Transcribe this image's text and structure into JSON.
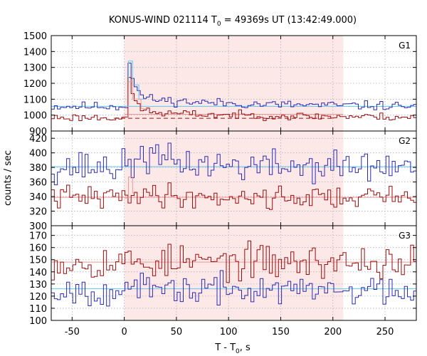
{
  "chart_data": {
    "type": "line",
    "title": "KONUS-WIND 021114 T",
    "title_sub": "0",
    "title_rest": " = 49369s UT (13:42:49.000)",
    "xlabel": "T - T",
    "xlabel_sub": "0",
    "xlabel_rest": ", s",
    "ylabel": "counts / sec",
    "xlim": [
      -70,
      280
    ],
    "xticks": [
      -50,
      0,
      50,
      100,
      150,
      200,
      250
    ],
    "xtick_labels": [
      "-50",
      "0",
      "50",
      "100",
      "150",
      "200",
      "250"
    ],
    "highlight": {
      "x0": 0,
      "x1": 210,
      "color": "#fde8e8"
    },
    "colors": {
      "blue": "#2b2bb0",
      "red": "#9b0d0d",
      "cyan": "#5bc8f0",
      "pink": "#e89a9a",
      "dash": "#9b0d0d"
    },
    "panels": [
      {
        "label": "G1",
        "ylim": [
          900,
          1500
        ],
        "yticks": [
          900,
          1000,
          1100,
          1200,
          1300,
          1400,
          1500
        ],
        "ytick_labels": [
          "900",
          "1000",
          "1100",
          "1200",
          "1300",
          "1400",
          "1500"
        ],
        "step": 2.944,
        "series": [
          {
            "name": "",
            "color": "blue",
            "background": 1055,
            "noise": 14,
            "seed": 11,
            "pulse": {
              "t0": 4,
              "peak": 290,
              "decay": 5,
              "tail": 55,
              "tail_decay": 90
            }
          },
          {
            "name": "",
            "color": "red",
            "background": 985,
            "noise": 12,
            "seed": 23,
            "pulse": {
              "t0": 4,
              "peak": 230,
              "decay": 6,
              "tail": 35,
              "tail_decay": 120
            }
          }
        ],
        "fit_lines": [
          {
            "color": "cyan",
            "value": 1055,
            "from": -70,
            "to": 280
          },
          {
            "color": "pink",
            "value": 1005,
            "from": 0,
            "to": 210
          },
          {
            "color": "dash",
            "value": 980,
            "from": -10,
            "to": 200,
            "dashed": true
          }
        ],
        "bin_lines": [
          {
            "color": "cyan",
            "x": [
              0,
              4,
              4,
              8,
              8,
              14,
              14,
              20
            ],
            "y": [
              1055,
              1055,
              1340,
              1340,
              1190,
              1190,
              1100,
              1100
            ]
          },
          {
            "color": "pink",
            "x": [
              0,
              4,
              4,
              8,
              8,
              16,
              16,
              24
            ],
            "y": [
              990,
              990,
              1210,
              1210,
              1100,
              1100,
              1040,
              1040
            ]
          }
        ]
      },
      {
        "label": "G2",
        "ylim": [
          300,
          430
        ],
        "yticks": [
          300,
          320,
          340,
          360,
          380,
          400,
          420
        ],
        "ytick_labels": [
          "300",
          "320",
          "340",
          "360",
          "380",
          "400",
          "420"
        ],
        "step": 2.944,
        "series": [
          {
            "name": "",
            "color": "blue",
            "background": 381,
            "noise": 11,
            "seed": 37,
            "pulse": {
              "t0": 10,
              "peak": 18,
              "decay": 40,
              "tail": 0,
              "tail_decay": 1
            }
          },
          {
            "name": "",
            "color": "red",
            "background": 339,
            "noise": 8,
            "seed": 41,
            "pulse": {
              "t0": 5,
              "peak": 8,
              "decay": 30,
              "tail": 0,
              "tail_decay": 1
            }
          }
        ],
        "fit_lines": [
          {
            "color": "cyan",
            "value": 381,
            "from": -70,
            "to": 280
          },
          {
            "color": "pink",
            "value": 339,
            "from": -70,
            "to": 280
          }
        ],
        "bin_lines": [
          {
            "color": "pink",
            "x": [
              0,
              4,
              4,
              8,
              8,
              12
            ],
            "y": [
              338,
              338,
              367,
              367,
              345,
              345
            ]
          }
        ]
      },
      {
        "label": "G3",
        "ylim": [
          100,
          178
        ],
        "yticks": [
          100,
          110,
          120,
          130,
          140,
          150,
          160,
          170
        ],
        "ytick_labels": [
          "100",
          "110",
          "120",
          "130",
          "140",
          "150",
          "160",
          "170"
        ],
        "step": 2.944,
        "series": [
          {
            "name": "",
            "color": "red",
            "background": 148,
            "noise": 7,
            "seed": 53,
            "pulse": {
              "t0": 0,
              "peak": 0,
              "decay": 1,
              "tail": 0,
              "tail_decay": 1
            }
          },
          {
            "name": "",
            "color": "blue",
            "background": 125,
            "noise": 6,
            "seed": 67,
            "pulse": {
              "t0": 0,
              "peak": 0,
              "decay": 1,
              "tail": 0,
              "tail_decay": 1
            }
          }
        ],
        "fit_lines": [
          {
            "color": "cyan",
            "value": 126,
            "from": -70,
            "to": 280
          },
          {
            "color": "pink",
            "value": 148,
            "from": -70,
            "to": 280
          }
        ],
        "bin_lines": []
      }
    ]
  }
}
